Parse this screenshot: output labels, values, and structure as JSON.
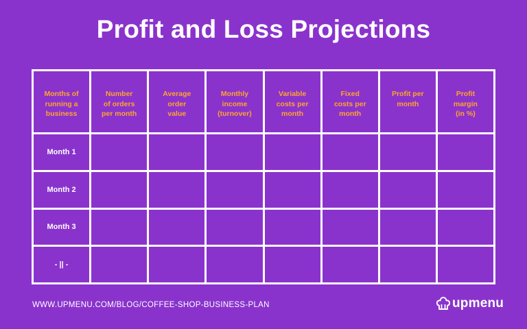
{
  "title": "Profit and Loss Projections",
  "table": {
    "headers": [
      [
        "Months of",
        "running a",
        "business"
      ],
      [
        "Number",
        "of orders",
        "per month"
      ],
      [
        "Average",
        "order",
        "value"
      ],
      [
        "Monthly",
        "income",
        "(turnover)"
      ],
      [
        "Variable",
        "costs per",
        "month"
      ],
      [
        "Fixed",
        "costs per",
        "month"
      ],
      [
        "Profit per",
        "month"
      ],
      [
        "Profit",
        "margin",
        "(in %)"
      ]
    ],
    "rows": [
      "Month 1",
      "Month 2",
      "Month 3",
      "- || -"
    ]
  },
  "footer": {
    "url": "WWW.UPMENU.COM/BLOG/COFFEE-SHOP-BUSINESS-PLAN",
    "logo_text": "upmenu",
    "logo_icon": "chef-hat-icon"
  },
  "colors": {
    "background": "#8a33cc",
    "header_text": "#ffa62b",
    "grid_lines": "#ffffff"
  }
}
